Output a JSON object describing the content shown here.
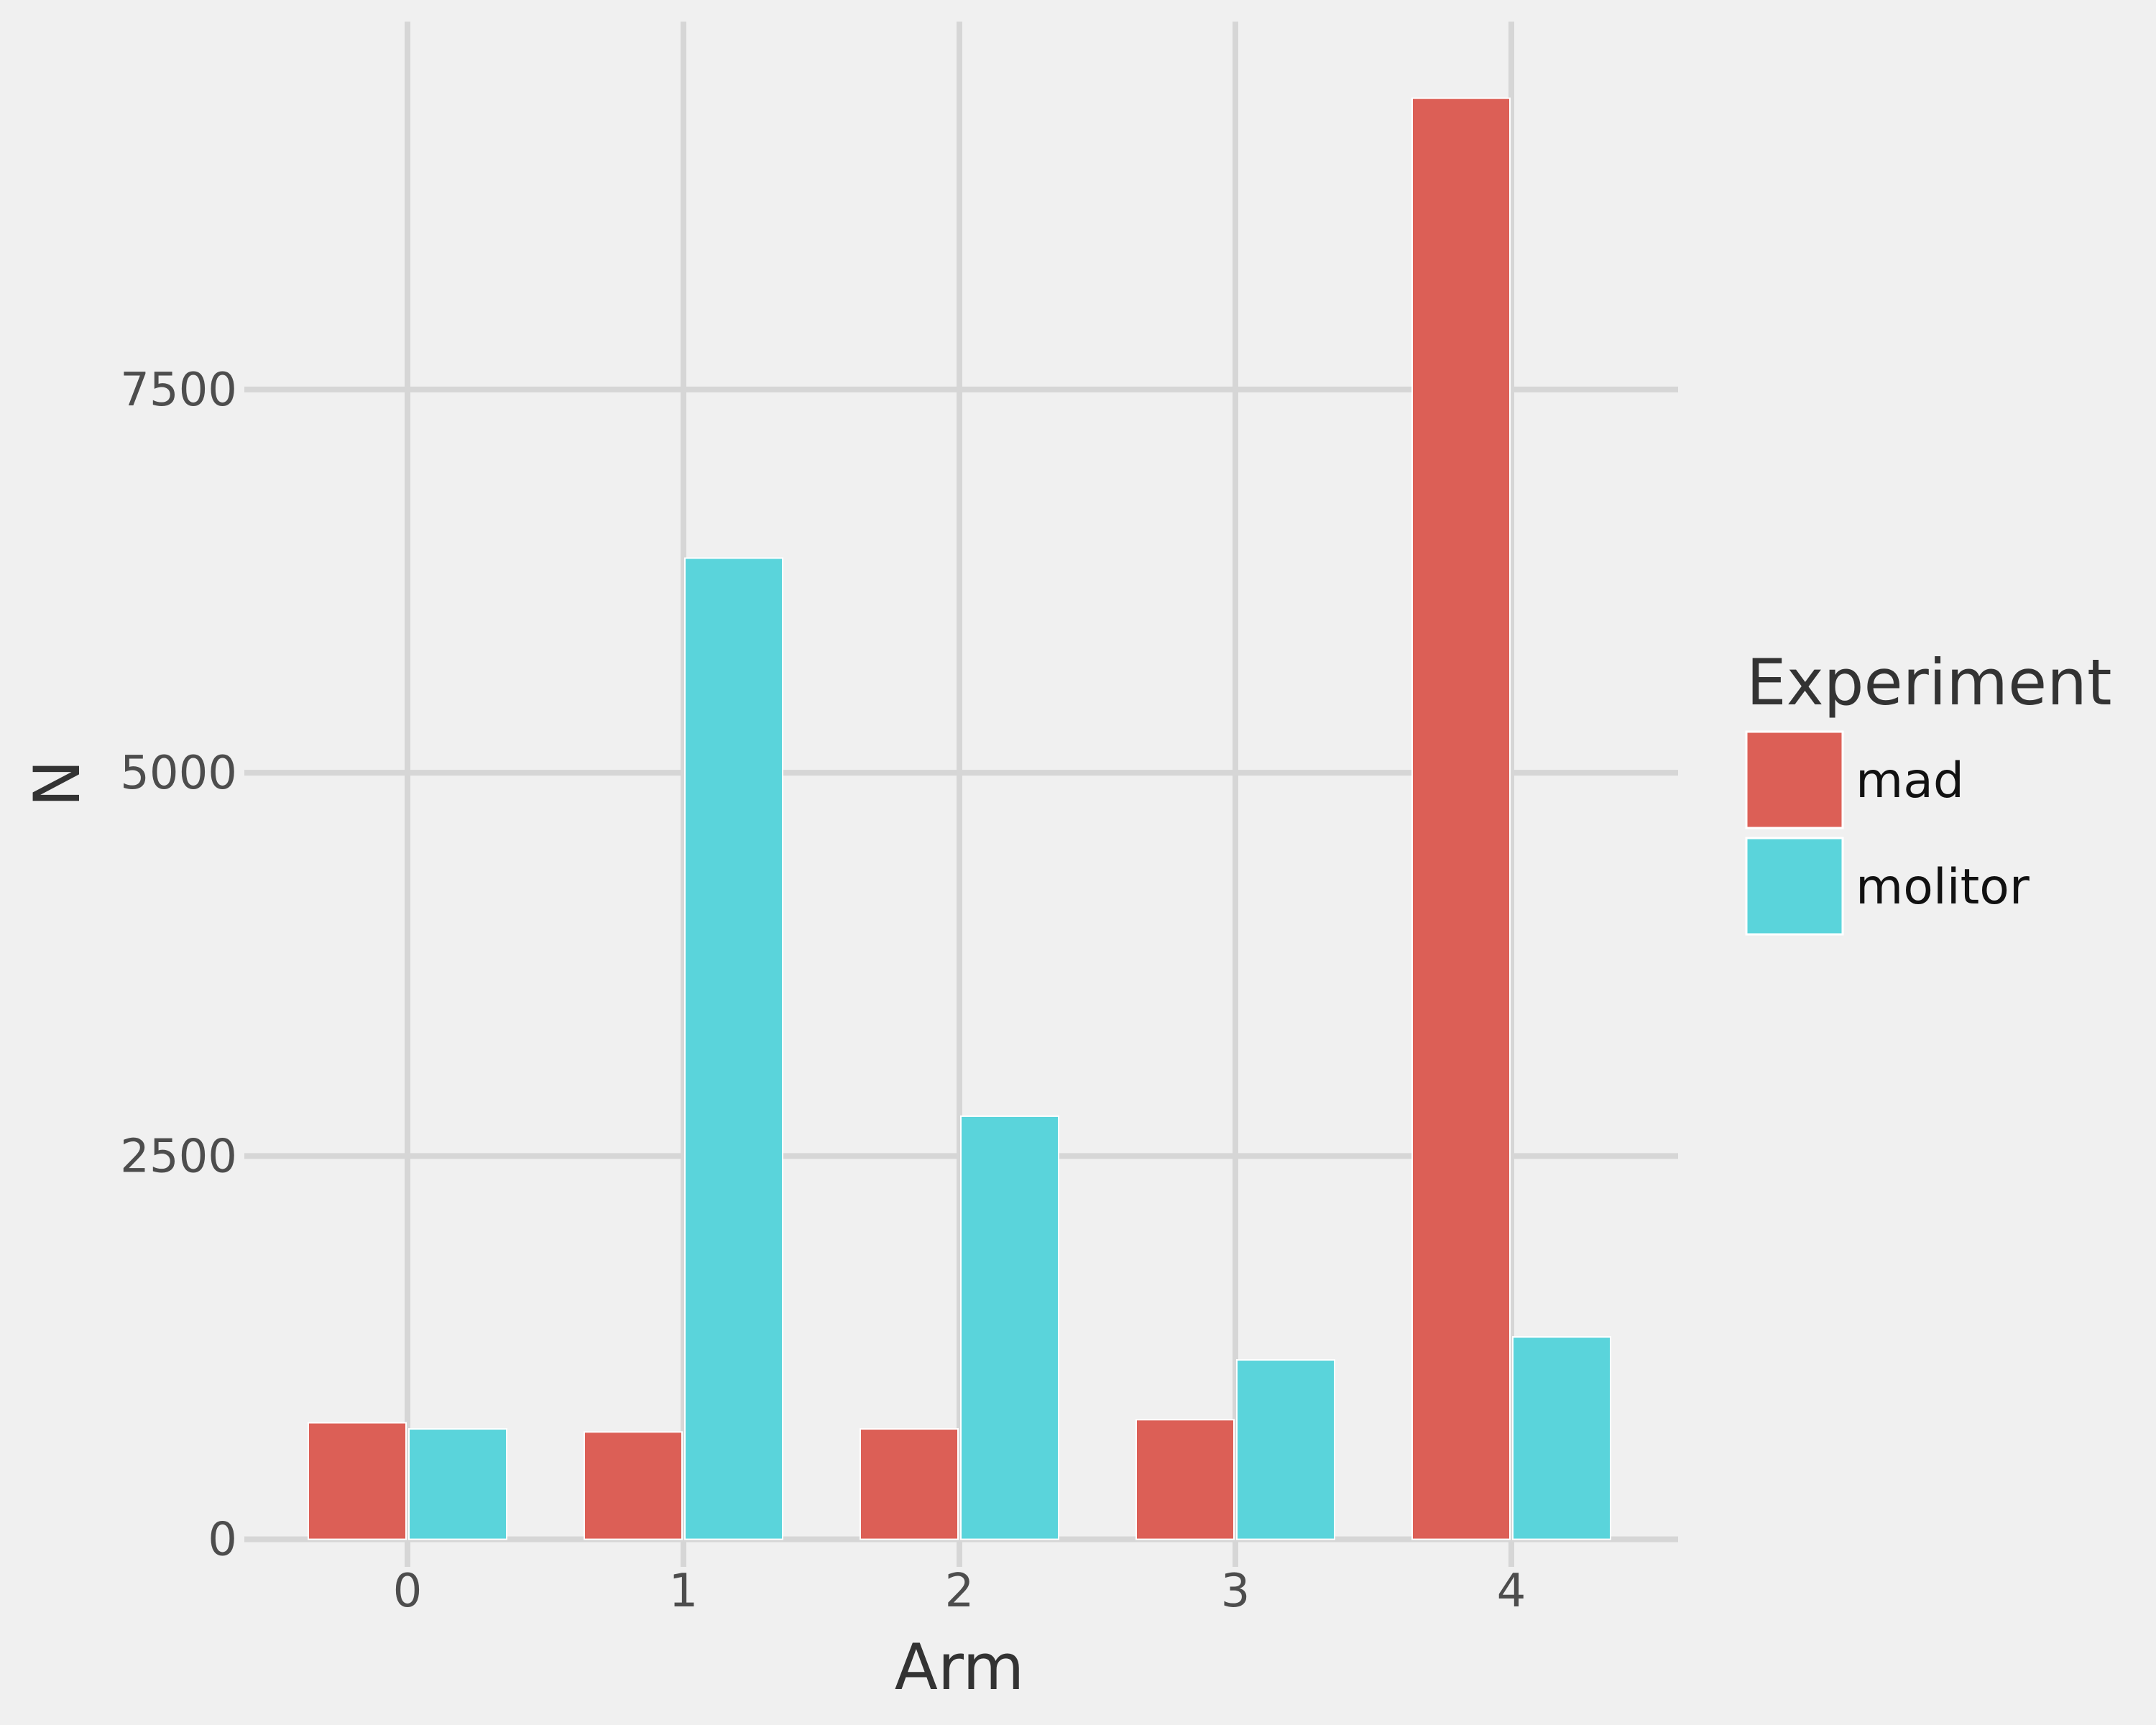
{
  "chart_data": {
    "type": "bar",
    "title": "",
    "xlabel": "Arm",
    "ylabel": "N",
    "categories": [
      "0",
      "1",
      "2",
      "3",
      "4"
    ],
    "series": [
      {
        "name": "mad",
        "color": "#dc5f56",
        "values": [
          760,
          700,
          720,
          780,
          9400
        ]
      },
      {
        "name": "molitor",
        "color": "#5ad4db",
        "values": [
          720,
          6400,
          2760,
          1170,
          1320
        ]
      }
    ],
    "ylim": [
      -180,
      9900
    ],
    "yticks": [
      0,
      2500,
      5000,
      7500
    ],
    "ytick_labels": [
      "0",
      "2500",
      "5000",
      "7500"
    ],
    "grid": true,
    "legend": {
      "title": "Experiment",
      "position": "right"
    },
    "background": "#f0f0f0",
    "grid_color": "#d6d6d6"
  }
}
